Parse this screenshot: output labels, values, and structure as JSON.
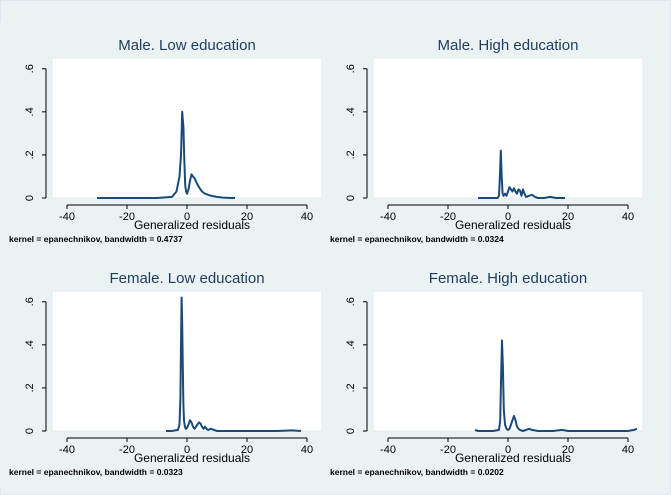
{
  "chart_data": [
    {
      "type": "line",
      "title": "Male. Low education",
      "xlabel": "Generalized residuals",
      "ylabel": "",
      "note": "kernel = epanechnikov, bandwidth = 0.4737",
      "xlim": [
        -45,
        45
      ],
      "ylim": [
        0,
        0.65
      ],
      "x_ticks": [
        -40,
        -20,
        0,
        20,
        40
      ],
      "x_tick_labels": [
        "-40",
        "-20",
        "0",
        "20",
        "40"
      ],
      "y_ticks": [
        0,
        0.2,
        0.4,
        0.6
      ],
      "y_tick_labels": [
        "0",
        ".2",
        ".4",
        ".6"
      ],
      "grid": false,
      "line_color": "#1a4a7a",
      "series": [
        {
          "x": [
            -30,
            -20,
            -10,
            -5,
            -3.5,
            -2.5,
            -2,
            -1.6,
            -1.2,
            -0.9,
            -0.6,
            -0.3,
            0,
            0.5,
            1,
            1.5,
            2,
            2.6,
            3.2,
            4,
            5,
            6,
            8,
            10,
            12,
            15,
            16
          ],
          "y": [
            0,
            0,
            0,
            0.005,
            0.03,
            0.1,
            0.2,
            0.4,
            0.33,
            0.18,
            0.06,
            0.03,
            0.02,
            0.04,
            0.08,
            0.11,
            0.1,
            0.09,
            0.07,
            0.05,
            0.03,
            0.02,
            0.01,
            0.005,
            0.002,
            0,
            0
          ]
        }
      ]
    },
    {
      "type": "line",
      "title": "Male. High education",
      "xlabel": "Generalized residuals",
      "ylabel": "",
      "note": "kernel = epanechnikov, bandwidth = 0.0324",
      "xlim": [
        -45,
        45
      ],
      "ylim": [
        0,
        0.65
      ],
      "x_ticks": [
        -40,
        -20,
        0,
        20,
        40
      ],
      "x_tick_labels": [
        "-40",
        "-20",
        "0",
        "20",
        "40"
      ],
      "y_ticks": [
        0,
        0.2,
        0.4,
        0.6
      ],
      "y_tick_labels": [
        "0",
        ".2",
        ".4",
        ".6"
      ],
      "grid": false,
      "line_color": "#1a4a7a",
      "series": [
        {
          "x": [
            -10,
            -5,
            -3.5,
            -3,
            -2.7,
            -2.4,
            -2.1,
            -1.8,
            -1.5,
            -1,
            -0.5,
            0,
            0.5,
            1,
            1.5,
            2,
            2.5,
            3,
            3.5,
            4,
            4.5,
            5,
            5.5,
            6,
            7,
            8,
            9,
            10,
            12,
            14,
            16,
            19
          ],
          "y": [
            0,
            0,
            0,
            0.01,
            0.1,
            0.22,
            0.1,
            0.02,
            0.01,
            0.02,
            0.01,
            0.03,
            0.05,
            0.04,
            0.03,
            0.045,
            0.03,
            0.02,
            0.04,
            0.035,
            0.01,
            0.04,
            0.02,
            0.005,
            0.01,
            0.015,
            0.005,
            0,
            0,
            0.005,
            0,
            0
          ]
        }
      ]
    },
    {
      "type": "line",
      "title": "Female. Low education",
      "xlabel": "Generalized residuals",
      "ylabel": "",
      "note": "kernel = epanechnikov, bandwidth = 0.0323",
      "xlim": [
        -45,
        45
      ],
      "ylim": [
        0,
        0.65
      ],
      "x_ticks": [
        -40,
        -20,
        0,
        20,
        40
      ],
      "x_tick_labels": [
        "-40",
        "-20",
        "0",
        "20",
        "40"
      ],
      "y_ticks": [
        0,
        0.2,
        0.4,
        0.6
      ],
      "y_tick_labels": [
        "0",
        ".2",
        ".4",
        ".6"
      ],
      "grid": false,
      "line_color": "#1a4a7a",
      "series": [
        {
          "x": [
            -7,
            -5,
            -3,
            -2.5,
            -2.2,
            -2,
            -1.8,
            -1.6,
            -1.4,
            -1.2,
            -1,
            -0.7,
            -0.4,
            0,
            0.5,
            1,
            1.5,
            2,
            2.5,
            3,
            3.5,
            4,
            4.5,
            5,
            5.5,
            6,
            6.5,
            7,
            8,
            9,
            10,
            15,
            20,
            25,
            30,
            35,
            38
          ],
          "y": [
            0,
            0,
            0.005,
            0.03,
            0.15,
            0.4,
            0.62,
            0.5,
            0.3,
            0.12,
            0.05,
            0.02,
            0.01,
            0.015,
            0.03,
            0.05,
            0.04,
            0.02,
            0.01,
            0.02,
            0.03,
            0.04,
            0.035,
            0.02,
            0.01,
            0.02,
            0.01,
            0.005,
            0.01,
            0.005,
            0,
            0,
            0,
            0,
            0,
            0.003,
            0
          ]
        }
      ]
    },
    {
      "type": "line",
      "title": "Female. High education",
      "xlabel": "Generalized residuals",
      "ylabel": "",
      "note": "kernel = epanechnikov, bandwidth = 0.0202",
      "xlim": [
        -45,
        45
      ],
      "ylim": [
        0,
        0.65
      ],
      "x_ticks": [
        -40,
        -20,
        0,
        20,
        40
      ],
      "x_tick_labels": [
        "-40",
        "-20",
        "0",
        "20",
        "40"
      ],
      "y_ticks": [
        0,
        0.2,
        0.4,
        0.6
      ],
      "y_tick_labels": [
        "0",
        ".2",
        ".4",
        ".6"
      ],
      "grid": false,
      "line_color": "#1a4a7a",
      "series": [
        {
          "x": [
            -11,
            -10,
            -5,
            -3,
            -2.6,
            -2.3,
            -2,
            -1.7,
            -1.4,
            -1,
            -0.5,
            0,
            0.5,
            1,
            1.5,
            2,
            2.5,
            3,
            3.5,
            4,
            5,
            6,
            7,
            8,
            10,
            15,
            18,
            20,
            25,
            30,
            35,
            40,
            42,
            43
          ],
          "y": [
            0.005,
            0,
            0,
            0.005,
            0.05,
            0.25,
            0.42,
            0.3,
            0.1,
            0.03,
            0.01,
            0.005,
            0.01,
            0.03,
            0.05,
            0.07,
            0.05,
            0.02,
            0.01,
            0.005,
            0,
            0.005,
            0.01,
            0.005,
            0,
            0,
            0.005,
            0,
            0,
            0,
            0,
            0,
            0.005,
            0.01
          ]
        }
      ]
    }
  ]
}
